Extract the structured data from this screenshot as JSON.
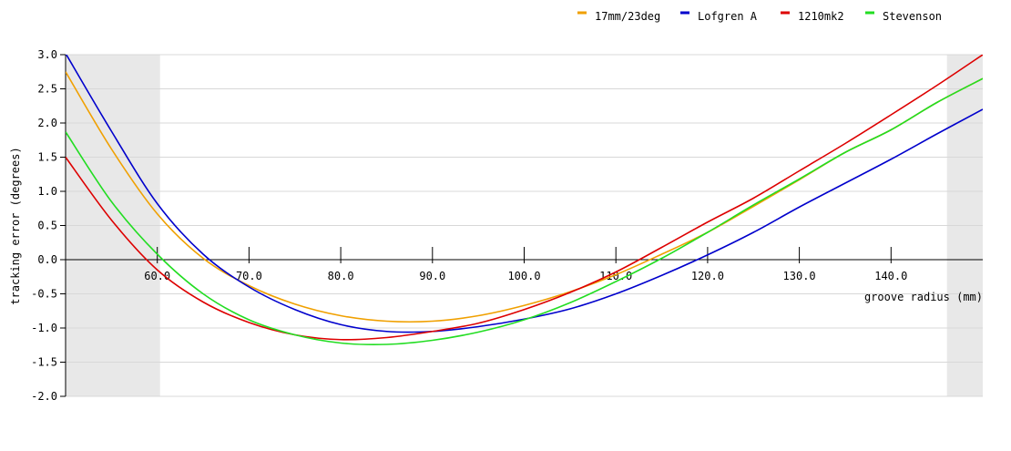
{
  "chart_data": {
    "type": "line",
    "title": "",
    "xlabel": "groove radius (mm)",
    "ylabel": "tracking error (degrees)",
    "xlim": [
      50.0,
      150.0
    ],
    "ylim": [
      -2.0,
      3.0
    ],
    "x_ticks": [
      60.0,
      70.0,
      80.0,
      90.0,
      100.0,
      110.0,
      120.0,
      130.0,
      140.0
    ],
    "x_tick_labels": [
      "60.0",
      "70.0",
      "80.0",
      "90.0",
      "100.0",
      "110.0",
      "120.0",
      "130.0",
      "140.0"
    ],
    "y_ticks": [
      3.0,
      2.5,
      2.0,
      1.5,
      1.0,
      0.5,
      0.0,
      -0.5,
      -1.0,
      -1.5,
      -2.0
    ],
    "y_tick_labels": [
      "3.0",
      "2.5",
      "2.0",
      "1.5",
      "1.0",
      "0.5",
      "0.0",
      "-0.5",
      "-1.0",
      "-1.5",
      "-2.0"
    ],
    "grid": true,
    "legend_position": "top-right",
    "shaded_regions": [
      {
        "x_start": 50.0,
        "x_end": 60.3
      },
      {
        "x_start": 146.1,
        "x_end": 150.0
      }
    ],
    "series": [
      {
        "name": "17mm/23deg",
        "color": "#f0a000",
        "x": [
          50,
          55,
          60,
          65,
          70,
          75,
          80,
          85,
          90,
          95,
          100,
          105,
          110,
          115,
          120,
          125,
          130,
          135,
          140,
          145,
          150
        ],
        "y": [
          2.75,
          1.62,
          0.67,
          0.02,
          -0.38,
          -0.65,
          -0.82,
          -0.9,
          -0.9,
          -0.82,
          -0.67,
          -0.47,
          -0.22,
          0.08,
          0.4,
          0.78,
          1.17,
          1.57,
          1.9,
          2.3,
          2.65
        ]
      },
      {
        "name": "Lofgren A",
        "color": "#0000cc",
        "x": [
          50,
          55,
          60,
          65,
          70,
          75,
          80,
          85,
          90,
          95,
          100,
          105,
          110,
          115,
          120,
          125,
          130,
          135,
          140,
          145,
          150
        ],
        "y": [
          3.02,
          1.88,
          0.82,
          0.08,
          -0.4,
          -0.73,
          -0.95,
          -1.05,
          -1.05,
          -0.98,
          -0.87,
          -0.72,
          -0.5,
          -0.23,
          0.07,
          0.4,
          0.77,
          1.12,
          1.47,
          1.84,
          2.2
        ]
      },
      {
        "name": "1210mk2",
        "color": "#dd0000",
        "x": [
          50,
          55,
          60,
          65,
          70,
          75,
          80,
          85,
          90,
          95,
          100,
          105,
          110,
          115,
          120,
          125,
          130,
          135,
          140,
          145,
          150
        ],
        "y": [
          1.5,
          0.58,
          -0.15,
          -0.62,
          -0.92,
          -1.1,
          -1.17,
          -1.14,
          -1.05,
          -0.93,
          -0.73,
          -0.48,
          -0.18,
          0.18,
          0.55,
          0.9,
          1.3,
          1.7,
          2.12,
          2.55,
          3.0
        ]
      },
      {
        "name": "Stevenson",
        "color": "#22dd22",
        "x": [
          50,
          55,
          60,
          65,
          70,
          75,
          80,
          85,
          90,
          95,
          100,
          105,
          110,
          115,
          120,
          125,
          130,
          135,
          140,
          145,
          150
        ],
        "y": [
          1.87,
          0.85,
          0.08,
          -0.5,
          -0.88,
          -1.1,
          -1.22,
          -1.24,
          -1.18,
          -1.06,
          -0.88,
          -0.63,
          -0.32,
          0.02,
          0.4,
          0.8,
          1.18,
          1.57,
          1.9,
          2.3,
          2.65
        ]
      }
    ]
  }
}
